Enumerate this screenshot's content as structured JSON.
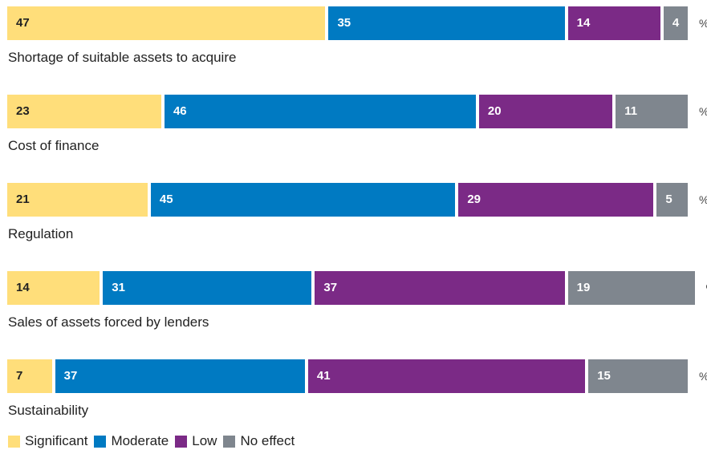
{
  "chart_data": {
    "type": "bar",
    "orientation": "horizontal",
    "stacked": true,
    "categories": [
      "Shortage of suitable assets to acquire",
      "Cost of finance",
      "Regulation",
      "Sales of assets forced by lenders",
      "Sustainability"
    ],
    "series": [
      {
        "name": "Significant",
        "color": "#FFDE7A",
        "text_color": "#222222",
        "values": [
          47,
          23,
          21,
          14,
          7
        ]
      },
      {
        "name": "Moderate",
        "color": "#007AC2",
        "text_color": "#ffffff",
        "values": [
          35,
          46,
          45,
          31,
          37
        ]
      },
      {
        "name": "Low",
        "color": "#7B2A86",
        "text_color": "#ffffff",
        "values": [
          14,
          20,
          29,
          37,
          41
        ]
      },
      {
        "name": "No effect",
        "color": "#7F868E",
        "text_color": "#ffffff",
        "values": [
          4,
          11,
          5,
          19,
          15
        ]
      }
    ],
    "unit": "%",
    "legend_position": "bottom-left"
  }
}
